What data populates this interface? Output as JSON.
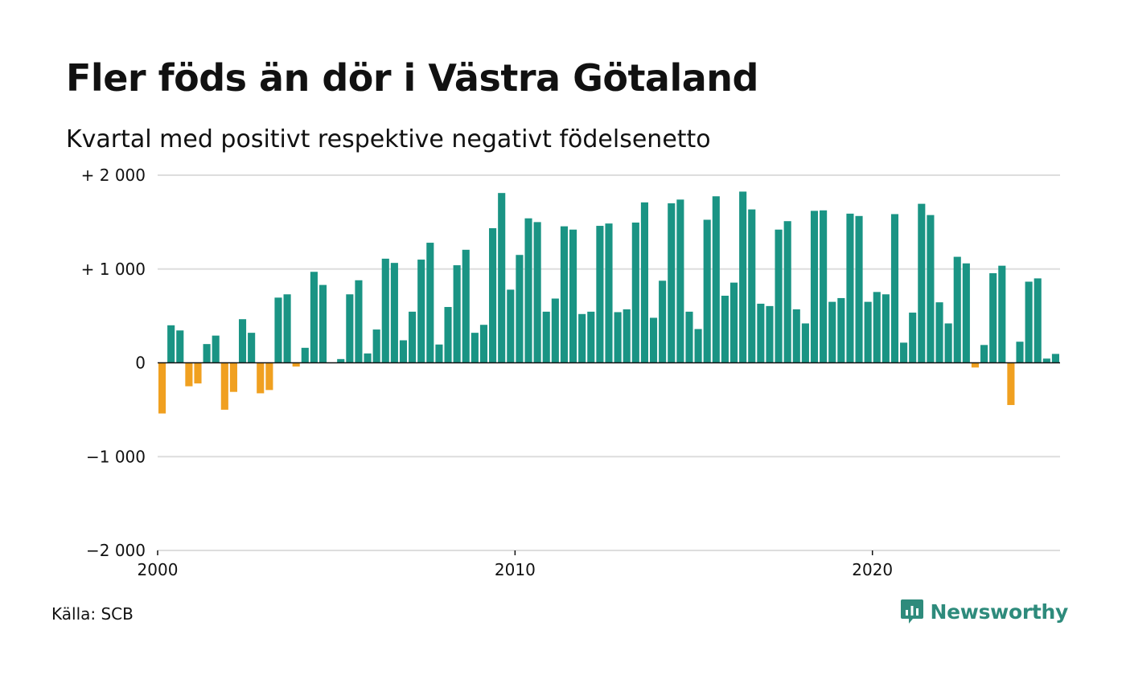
{
  "header": {
    "title": "Fler föds än dör i Västra Götaland",
    "subtitle": "Kvartal med positivt respektive negativt födelsenetto"
  },
  "footer": {
    "source": "Källa: SCB",
    "brand": "Newsworthy"
  },
  "colors": {
    "positive": "#1a9484",
    "negative": "#f0a020",
    "grid": "#dddddd",
    "zero_line": "#111111",
    "brand": "#2e8b7c"
  },
  "chart_data": {
    "type": "bar",
    "title": "Fler föds än dör i Västra Götaland",
    "subtitle": "Kvartal med positivt respektive negativt födelsenetto",
    "xlabel": "",
    "ylabel": "",
    "ylim": [
      -2000,
      2000
    ],
    "xlim": [
      2000,
      2025.25
    ],
    "grid": true,
    "y_ticks": [
      {
        "value": 2000,
        "label": "+ 2 000"
      },
      {
        "value": 1000,
        "label": "+ 1 000"
      },
      {
        "value": 0,
        "label": "0"
      },
      {
        "value": -1000,
        "label": "−1 000"
      },
      {
        "value": -2000,
        "label": "−2 000"
      }
    ],
    "x_ticks": [
      {
        "value": 2000,
        "label": "2000"
      },
      {
        "value": 2010,
        "label": "2010"
      },
      {
        "value": 2020,
        "label": "2020"
      }
    ],
    "x": [
      "2000-Q1",
      "2000-Q2",
      "2000-Q3",
      "2000-Q4",
      "2001-Q1",
      "2001-Q2",
      "2001-Q3",
      "2001-Q4",
      "2002-Q1",
      "2002-Q2",
      "2002-Q3",
      "2002-Q4",
      "2003-Q1",
      "2003-Q2",
      "2003-Q3",
      "2003-Q4",
      "2004-Q1",
      "2004-Q2",
      "2004-Q3",
      "2004-Q4",
      "2005-Q1",
      "2005-Q2",
      "2005-Q3",
      "2005-Q4",
      "2006-Q1",
      "2006-Q2",
      "2006-Q3",
      "2006-Q4",
      "2007-Q1",
      "2007-Q2",
      "2007-Q3",
      "2007-Q4",
      "2008-Q1",
      "2008-Q2",
      "2008-Q3",
      "2008-Q4",
      "2009-Q1",
      "2009-Q2",
      "2009-Q3",
      "2009-Q4",
      "2010-Q1",
      "2010-Q2",
      "2010-Q3",
      "2010-Q4",
      "2011-Q1",
      "2011-Q2",
      "2011-Q3",
      "2011-Q4",
      "2012-Q1",
      "2012-Q2",
      "2012-Q3",
      "2012-Q4",
      "2013-Q1",
      "2013-Q2",
      "2013-Q3",
      "2013-Q4",
      "2014-Q1",
      "2014-Q2",
      "2014-Q3",
      "2014-Q4",
      "2015-Q1",
      "2015-Q2",
      "2015-Q3",
      "2015-Q4",
      "2016-Q1",
      "2016-Q2",
      "2016-Q3",
      "2016-Q4",
      "2017-Q1",
      "2017-Q2",
      "2017-Q3",
      "2017-Q4",
      "2018-Q1",
      "2018-Q2",
      "2018-Q3",
      "2018-Q4",
      "2019-Q1",
      "2019-Q2",
      "2019-Q3",
      "2019-Q4",
      "2020-Q1",
      "2020-Q2",
      "2020-Q3",
      "2020-Q4",
      "2021-Q1",
      "2021-Q2",
      "2021-Q3",
      "2021-Q4",
      "2022-Q1",
      "2022-Q2",
      "2022-Q3",
      "2022-Q4",
      "2023-Q1",
      "2023-Q2",
      "2023-Q3",
      "2023-Q4",
      "2024-Q1",
      "2024-Q2",
      "2024-Q3",
      "2024-Q4",
      "2025-Q1"
    ],
    "values": [
      -540,
      400,
      345,
      -250,
      -220,
      200,
      290,
      -500,
      -310,
      465,
      320,
      -325,
      -290,
      695,
      730,
      -40,
      160,
      970,
      830,
      0,
      40,
      730,
      880,
      100,
      355,
      1110,
      1065,
      240,
      545,
      1100,
      1280,
      195,
      595,
      1040,
      1205,
      320,
      405,
      1435,
      1810,
      780,
      1150,
      1540,
      1500,
      545,
      685,
      1455,
      1420,
      520,
      545,
      1460,
      1485,
      540,
      570,
      1495,
      1710,
      480,
      875,
      1700,
      1740,
      545,
      360,
      1525,
      1775,
      715,
      855,
      1825,
      1635,
      630,
      605,
      1420,
      1510,
      570,
      420,
      1620,
      1625,
      650,
      690,
      1590,
      1565,
      650,
      755,
      730,
      1585,
      215,
      535,
      1695,
      1575,
      645,
      420,
      1130,
      1060,
      -50,
      190,
      955,
      1035,
      -450,
      225,
      865,
      900,
      45,
      95
    ]
  }
}
